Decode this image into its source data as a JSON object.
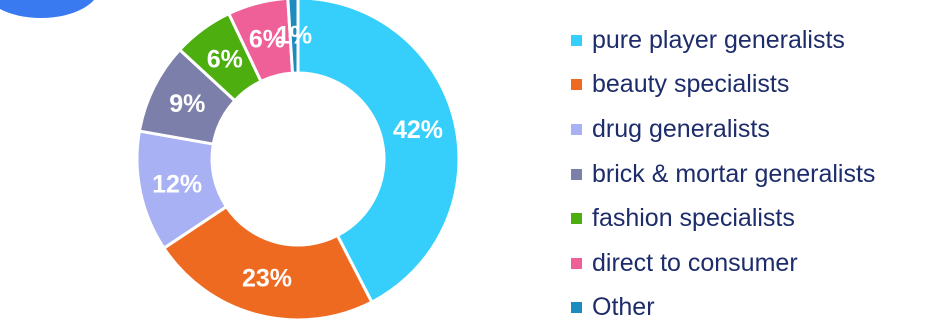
{
  "page": {
    "badge_color": "#3a7af0"
  },
  "chart_data": {
    "type": "pie",
    "variant": "donut",
    "start_angle_deg": 0,
    "direction": "clockwise",
    "legend_position": "right",
    "categories": [
      "pure player generalists",
      "beauty specialists",
      "drug generalists",
      "brick & mortar generalists",
      "fashion specialists",
      "direct to consumer",
      "Other"
    ],
    "values": [
      42,
      23,
      12,
      9,
      6,
      6,
      1
    ],
    "labels": [
      "42%",
      "23%",
      "12%",
      "9%",
      "6%",
      "6%",
      "1%"
    ],
    "colors": [
      "#36cffb",
      "#ef6a21",
      "#a8b1f4",
      "#7c7fa9",
      "#4cae0f",
      "#ef5f98",
      "#1c8cbf"
    ]
  }
}
